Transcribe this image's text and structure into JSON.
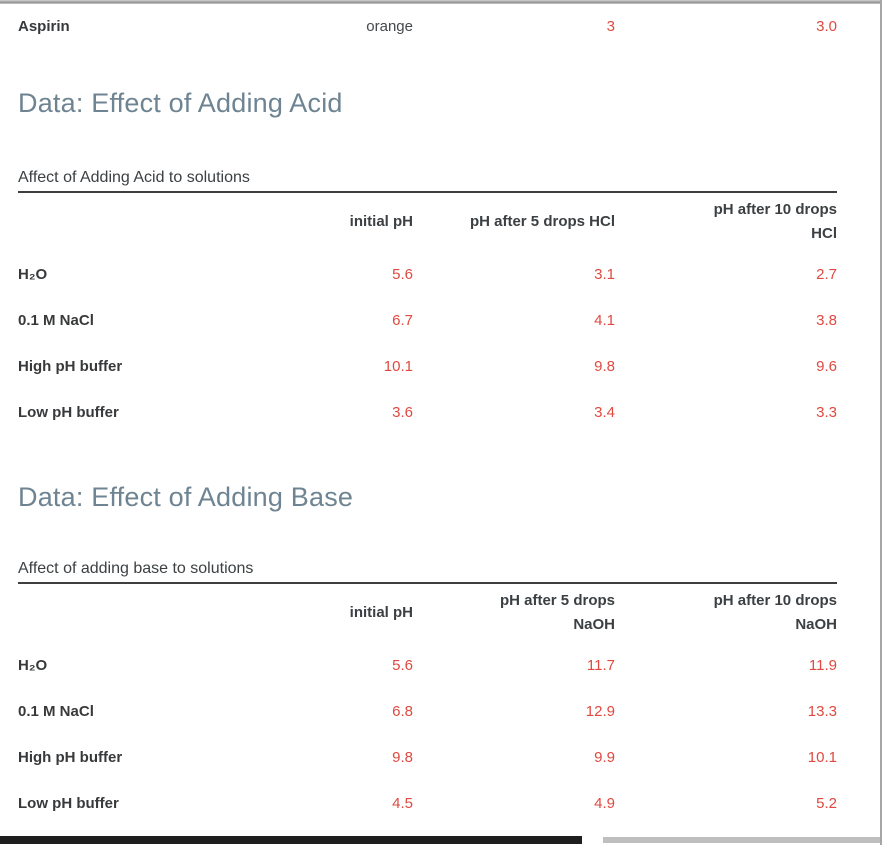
{
  "partial_row": {
    "cells": [
      "Aspirin",
      "orange",
      "3",
      "3.0"
    ]
  },
  "sections": [
    {
      "heading": "Data: Effect of Adding Acid",
      "caption": "Affect of Adding Acid to solutions",
      "table": {
        "headers": [
          "",
          "initial pH",
          "pH after 5 drops HCl",
          "pH after 10 drops\nHCl"
        ],
        "rows": [
          [
            "H₂O",
            "5.6",
            "3.1",
            "2.7"
          ],
          [
            "0.1 M NaCl",
            "6.7",
            "4.1",
            "3.8"
          ],
          [
            "High pH buffer",
            "10.1",
            "9.8",
            "9.6"
          ],
          [
            "Low pH buffer",
            "3.6",
            "3.4",
            "3.3"
          ]
        ]
      }
    },
    {
      "heading": "Data: Effect of Adding Base",
      "caption": "Affect of adding base to solutions",
      "table": {
        "headers": [
          "",
          "initial pH",
          "pH after 5 drops\nNaOH",
          "pH after 10 drops\nNaOH"
        ],
        "rows": [
          [
            "H₂O",
            "5.6",
            "11.7",
            "11.9"
          ],
          [
            "0.1 M NaCl",
            "6.8",
            "12.9",
            "13.3"
          ],
          [
            "High pH buffer",
            "9.8",
            "9.9",
            "10.1"
          ],
          [
            "Low pH buffer",
            "4.5",
            "4.9",
            "5.2"
          ]
        ]
      }
    }
  ],
  "colors": {
    "value_red": "#e0493f",
    "heading_slate": "#6e8492",
    "text_dark": "#3c4043",
    "table_rule": "#3f3f3f",
    "scroll_thumb": "#1e1e1e",
    "scroll_track": "#bfbfbf"
  }
}
